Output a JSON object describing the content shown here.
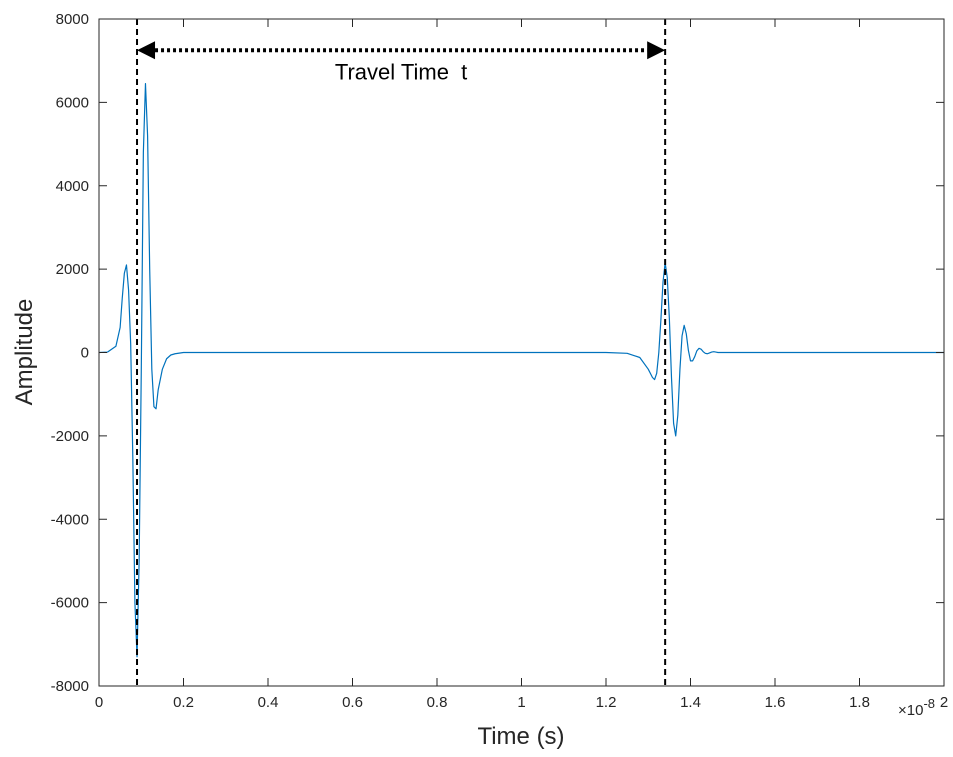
{
  "chart_data": {
    "type": "line",
    "title": "",
    "xlabel": "Time (s)",
    "ylabel": "Amplitude",
    "x_scale_exponent": "×10",
    "x_scale_power": "-8",
    "xlim": [
      0,
      2
    ],
    "ylim": [
      -8000,
      8000
    ],
    "xticks": [
      "0",
      "0.2",
      "0.4",
      "0.6",
      "0.8",
      "1",
      "1.2",
      "1.4",
      "1.6",
      "1.8",
      "2"
    ],
    "yticks": [
      "-8000",
      "-6000",
      "-4000",
      "-2000",
      "0",
      "2000",
      "4000",
      "6000",
      "8000"
    ],
    "grid": false,
    "legend": "none",
    "series": [
      {
        "color": "#0072BD",
        "x": [
          0,
          0.02,
          0.04,
          0.05,
          0.055,
          0.06,
          0.065,
          0.07,
          0.075,
          0.08,
          0.085,
          0.09,
          0.095,
          0.1,
          0.105,
          0.11,
          0.115,
          0.12,
          0.125,
          0.13,
          0.135,
          0.14,
          0.15,
          0.16,
          0.17,
          0.18,
          0.2,
          0.4,
          0.8,
          1.0,
          1.2,
          1.25,
          1.28,
          1.3,
          1.31,
          1.315,
          1.32,
          1.325,
          1.33,
          1.335,
          1.34,
          1.345,
          1.35,
          1.355,
          1.36,
          1.365,
          1.37,
          1.375,
          1.38,
          1.385,
          1.39,
          1.395,
          1.4,
          1.405,
          1.41,
          1.415,
          1.42,
          1.425,
          1.43,
          1.435,
          1.44,
          1.445,
          1.45,
          1.455,
          1.46,
          1.465,
          1.47,
          1.5,
          1.7,
          2.0
        ],
        "y": [
          0,
          10,
          150,
          600,
          1300,
          1900,
          2100,
          1500,
          200,
          -2500,
          -6000,
          -7300,
          -5000,
          -500,
          4800,
          6450,
          5200,
          2000,
          -400,
          -1300,
          -1350,
          -900,
          -400,
          -150,
          -60,
          -30,
          0,
          0,
          0,
          0,
          0,
          -20,
          -120,
          -400,
          -600,
          -650,
          -500,
          0,
          800,
          1700,
          2150,
          1800,
          800,
          -600,
          -1700,
          -2000,
          -1500,
          -400,
          400,
          650,
          450,
          50,
          -200,
          -200,
          -100,
          40,
          100,
          80,
          20,
          -20,
          -30,
          -10,
          10,
          20,
          10,
          0,
          0,
          0,
          0,
          0
        ]
      }
    ],
    "reference_lines": [
      {
        "orientation": "vertical",
        "x": 0.09,
        "style": "dashed",
        "color": "#000000"
      },
      {
        "orientation": "vertical",
        "x": 1.34,
        "style": "dashed",
        "color": "#000000"
      }
    ],
    "annotations": [
      {
        "type": "double-arrow",
        "from_x": 0.09,
        "to_x": 1.34,
        "y": 7250,
        "style": "dotted",
        "color": "#000000"
      },
      {
        "type": "text",
        "text": "Travel Time  t",
        "x": 0.715,
        "y": 6550
      }
    ]
  }
}
